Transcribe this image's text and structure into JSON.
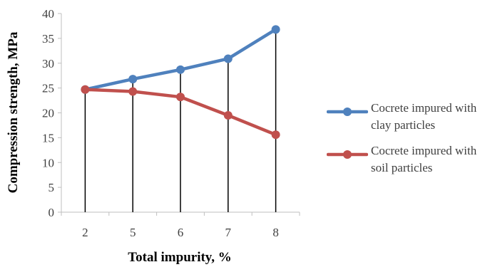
{
  "chart_data": {
    "type": "line",
    "categories": [
      "2",
      "5",
      "6",
      "7",
      "8"
    ],
    "series": [
      {
        "name": "Cocrete impured with clay particles",
        "color": "#4f81bd",
        "values": [
          24.7,
          26.8,
          28.7,
          30.9,
          36.8
        ]
      },
      {
        "name": "Cocrete impured with soil particles",
        "color": "#c0504d",
        "values": [
          24.7,
          24.3,
          23.2,
          19.5,
          15.6
        ]
      }
    ],
    "title": "",
    "xlabel": "Total impurity, %",
    "ylabel": "Compression strength, MPa",
    "ylim": [
      0,
      40
    ],
    "yticks": [
      "0",
      "5",
      "10",
      "15",
      "20",
      "25",
      "30",
      "35",
      "40"
    ],
    "grid": false,
    "drop_lines": true,
    "legend_position": "right"
  }
}
